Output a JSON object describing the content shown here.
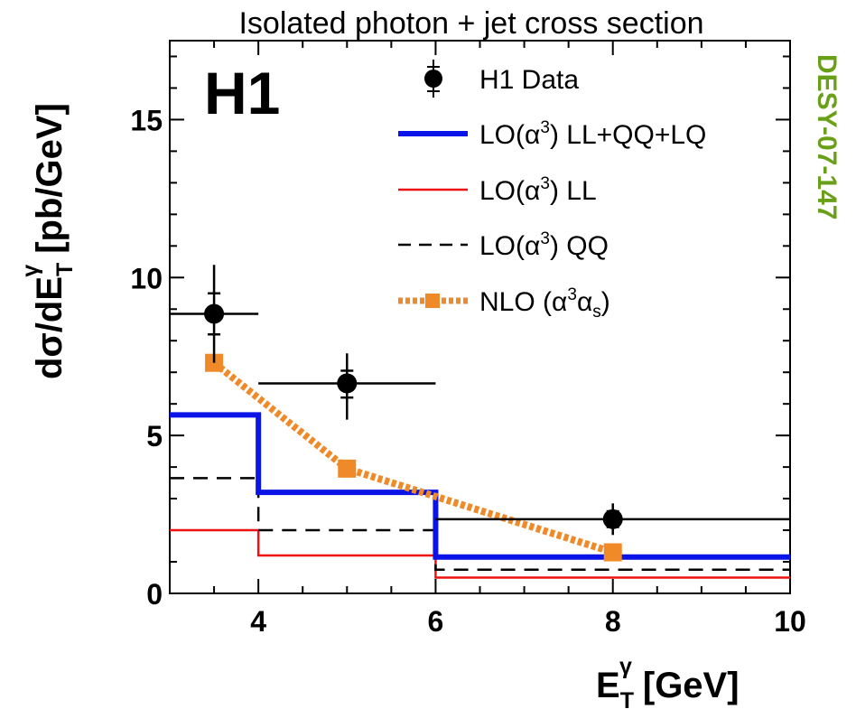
{
  "chart_data": {
    "type": "line",
    "title": "Isolated photon + jet cross section",
    "logo": "H1",
    "reference": "DESY-07-147",
    "xlabel_main": "E",
    "xlabel_sup": "γ",
    "xlabel_sub": "T",
    "xlabel_unit": "[GeV]",
    "ylabel_main": "dσ/dE",
    "ylabel_sup": "γ",
    "ylabel_sub": "T",
    "ylabel_unit": "[pb/GeV]",
    "xlim": [
      3,
      10
    ],
    "ylim": [
      0,
      17.5
    ],
    "x_ticks": [
      4,
      6,
      8,
      10
    ],
    "y_ticks": [
      0,
      5,
      10,
      15
    ],
    "x_tick_labels": [
      "4",
      "6",
      "8",
      "10"
    ],
    "y_tick_labels": [
      "0",
      "5",
      "10",
      "15"
    ],
    "grid": false,
    "legend_position": "top-right",
    "data_points": {
      "name": "H1 Data",
      "color": "#000000",
      "points": [
        {
          "x": 3.5,
          "y": 8.85,
          "xlo": 3.0,
          "xhi": 4.0,
          "stat_lo": 8.2,
          "stat_hi": 9.5,
          "tot_lo": 7.3,
          "tot_hi": 10.4
        },
        {
          "x": 5.0,
          "y": 6.65,
          "xlo": 4.0,
          "xhi": 6.0,
          "stat_lo": 6.2,
          "stat_hi": 7.05,
          "tot_lo": 5.5,
          "tot_hi": 7.6
        },
        {
          "x": 8.0,
          "y": 2.35,
          "xlo": 6.0,
          "xhi": 10.0,
          "stat_lo": 2.1,
          "stat_hi": 2.6,
          "tot_lo": 1.85,
          "tot_hi": 2.85
        }
      ]
    },
    "series": [
      {
        "name": "LO(α³) LL+QQ+LQ",
        "style": "histogram",
        "color": "#0a14e6",
        "bin_edges": [
          3,
          4,
          6,
          10
        ],
        "values": [
          5.65,
          3.2,
          1.15
        ]
      },
      {
        "name": "LO(α³) LL",
        "style": "histogram",
        "color": "#ee1111",
        "bin_edges": [
          3,
          4,
          6,
          10
        ],
        "values": [
          2.0,
          1.2,
          0.5
        ]
      },
      {
        "name": "LO(α³) QQ",
        "style": "histogram-dashed",
        "color": "#000000",
        "bin_edges": [
          3,
          4,
          6,
          10
        ],
        "values": [
          3.65,
          2.0,
          0.75
        ]
      },
      {
        "name": "NLO (α³αs)",
        "style": "dotted-line-markers",
        "color": "#f08a28",
        "x": [
          3.5,
          5.0,
          8.0
        ],
        "values": [
          7.3,
          3.95,
          1.3
        ]
      }
    ],
    "legend": {
      "data_label": "H1 Data",
      "lo_all_label": "LO(α³) LL+QQ+LQ",
      "lo_ll_label": "LO(α³) LL",
      "lo_qq_label": "LO(α³) QQ",
      "nlo_label": "NLO (α³αs)"
    }
  }
}
